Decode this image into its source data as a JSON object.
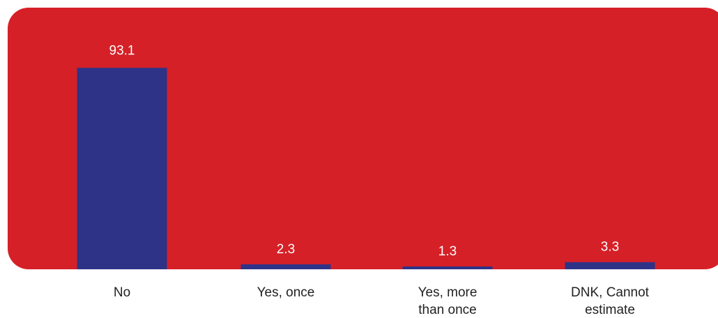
{
  "colors": {
    "background_panel": "#d62027",
    "bar": "#2e3388",
    "value_label": "#ffffff",
    "category_label": "#222222"
  },
  "chart_data": {
    "type": "bar",
    "categories": [
      "No",
      "Yes, once",
      "Yes, more than once",
      "DNK, Cannot estimate"
    ],
    "category_label_lines": [
      [
        "No"
      ],
      [
        "Yes, once"
      ],
      [
        "Yes, more",
        "than once"
      ],
      [
        "DNK, Cannot",
        "estimate"
      ]
    ],
    "values": [
      93.1,
      2.3,
      1.3,
      3.3
    ],
    "value_labels": [
      "93.1",
      "2.3",
      "1.3",
      "3.3"
    ],
    "ylim": [
      0,
      100
    ],
    "grid": false,
    "legend": "none"
  }
}
